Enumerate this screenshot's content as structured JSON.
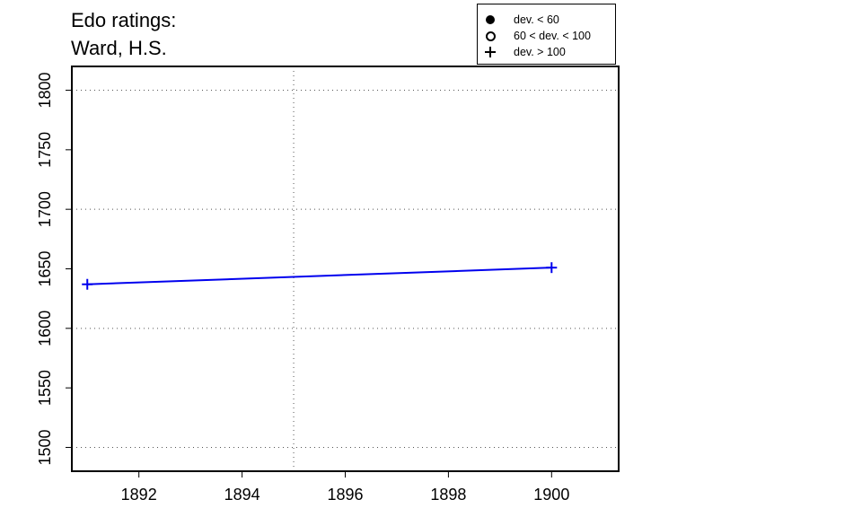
{
  "chart_data": {
    "type": "line",
    "title_lines": [
      "Edo ratings:",
      "Ward, H.S."
    ],
    "xlabel": "",
    "ylabel": "",
    "xlim": [
      1890.7,
      1901.3
    ],
    "ylim": [
      1480,
      1820
    ],
    "x_ticks": [
      1892,
      1894,
      1896,
      1898,
      1900
    ],
    "y_ticks": [
      1500,
      1550,
      1600,
      1650,
      1700,
      1750,
      1800
    ],
    "x_grid": [
      1895
    ],
    "y_grid": [
      1500,
      1600,
      1700,
      1800
    ],
    "grid": true,
    "series": [
      {
        "x": [
          1891,
          1900
        ],
        "y": [
          1637,
          1651
        ],
        "markers": [
          "plus",
          "plus"
        ],
        "color": "#0000ee"
      }
    ],
    "legend": {
      "placement": "top-right",
      "entries": [
        {
          "symbol": "filled-circle",
          "label": "dev. < 60"
        },
        {
          "symbol": "open-circle",
          "label": "60 < dev. < 100"
        },
        {
          "symbol": "plus",
          "label": "dev. > 100"
        }
      ]
    }
  }
}
